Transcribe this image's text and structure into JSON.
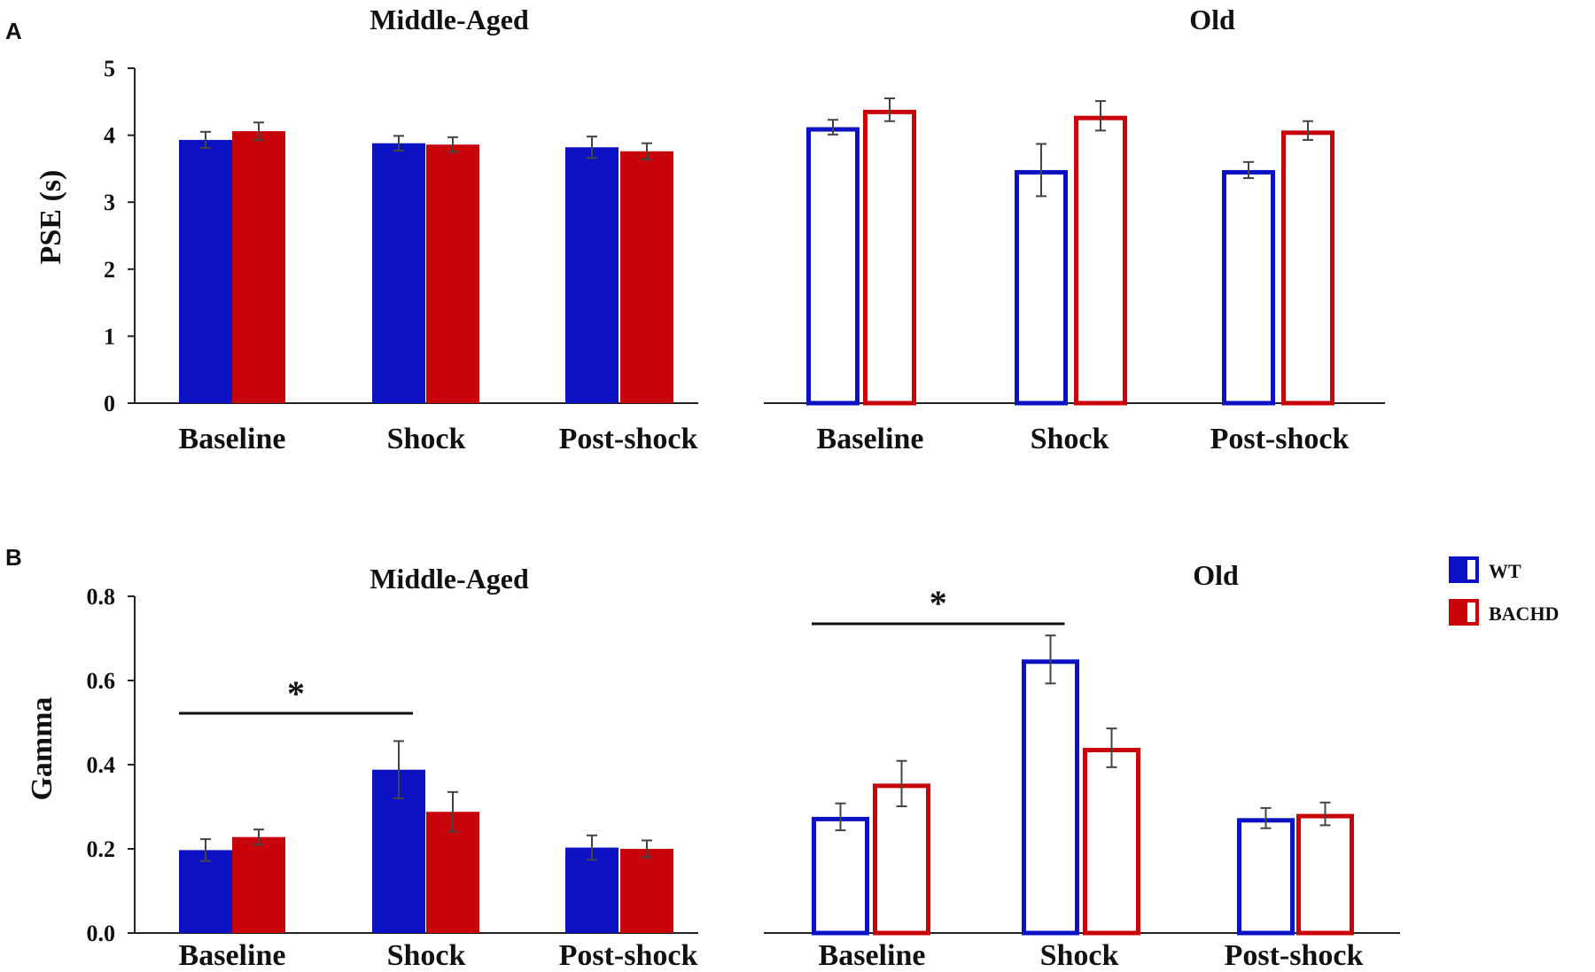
{
  "panels": [
    {
      "letter": "A"
    },
    {
      "letter": "B"
    }
  ],
  "legend": {
    "items": [
      {
        "label": "WT",
        "color": "#0b12c4"
      },
      {
        "label": "BACHD",
        "color": "#c8040a"
      }
    ]
  },
  "chart_data": [
    {
      "id": "A-middle",
      "type": "bar",
      "title": "Middle-Aged",
      "ylabel": "PSE (s)",
      "ylim": [
        0,
        5
      ],
      "yticks": [
        "0",
        "1",
        "2",
        "3",
        "4",
        "5"
      ],
      "style": "filled",
      "categories": [
        "Baseline",
        "Shock",
        "Post-shock"
      ],
      "series": [
        {
          "name": "WT",
          "values": [
            3.93,
            3.88,
            3.82
          ],
          "errors": [
            0.12,
            0.11,
            0.16
          ]
        },
        {
          "name": "BACHD",
          "values": [
            4.06,
            3.86,
            3.76
          ],
          "errors": [
            0.13,
            0.11,
            0.12
          ]
        }
      ]
    },
    {
      "id": "A-old",
      "type": "bar",
      "title": "Old",
      "ylabel": "",
      "ylim": [
        0,
        5
      ],
      "yticks": [],
      "style": "outline",
      "categories": [
        "Baseline",
        "Shock",
        "Post-shock"
      ],
      "series": [
        {
          "name": "WT",
          "values": [
            4.12,
            3.48,
            3.48
          ],
          "errors": [
            0.11,
            0.39,
            0.12
          ]
        },
        {
          "name": "BACHD",
          "values": [
            4.38,
            4.29,
            4.07
          ],
          "errors": [
            0.17,
            0.22,
            0.14
          ]
        }
      ]
    },
    {
      "id": "B-middle",
      "type": "bar",
      "title": "Middle-Aged",
      "ylabel": "Gamma",
      "ylim": [
        0,
        0.8
      ],
      "yticks": [
        "0.0",
        "0.2",
        "0.4",
        "0.6",
        "0.8"
      ],
      "style": "filled",
      "categories": [
        "Baseline",
        "Shock",
        "Post-shock"
      ],
      "series": [
        {
          "name": "WT",
          "values": [
            0.197,
            0.388,
            0.203
          ],
          "errors": [
            0.026,
            0.068,
            0.029
          ]
        },
        {
          "name": "BACHD",
          "values": [
            0.228,
            0.288,
            0.2
          ],
          "errors": [
            0.018,
            0.047,
            0.02
          ]
        }
      ],
      "significance": {
        "from": 0,
        "to": 1,
        "label": "*"
      }
    },
    {
      "id": "B-old",
      "type": "bar",
      "title": "Old",
      "ylabel": "",
      "ylim": [
        0,
        0.8
      ],
      "yticks": [],
      "style": "outline",
      "categories": [
        "Baseline",
        "Shock",
        "Post-shock"
      ],
      "series": [
        {
          "name": "WT",
          "values": [
            0.276,
            0.65,
            0.273
          ],
          "errors": [
            0.032,
            0.057,
            0.024
          ]
        },
        {
          "name": "BACHD",
          "values": [
            0.355,
            0.44,
            0.283
          ],
          "errors": [
            0.054,
            0.046,
            0.027
          ]
        }
      ],
      "significance": {
        "from": 0,
        "to": 1,
        "label": "*"
      }
    }
  ]
}
